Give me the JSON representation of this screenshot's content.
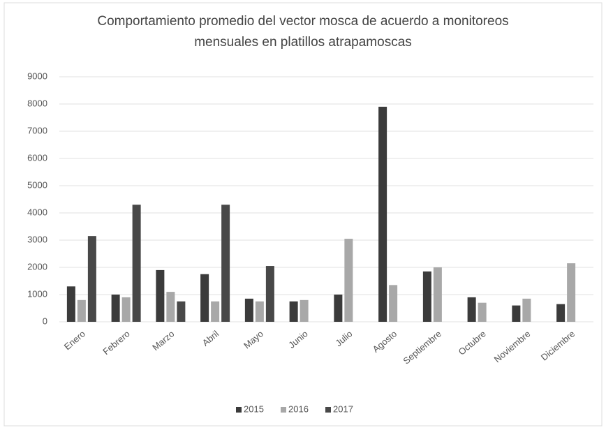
{
  "chart_data": {
    "type": "bar",
    "title": "Comportamiento promedio del vector mosca de acuerdo a monitoreos mensuales en platillos atrapamoscas",
    "categories": [
      "Enero",
      "Febrero",
      "Marzo",
      "Abril",
      "Mayo",
      "Junio",
      "Julio",
      "Agosto",
      "Septiembre",
      "Octubre",
      "Noviembre",
      "Diciembre"
    ],
    "series": [
      {
        "name": "2015",
        "color": "#3b3b3b",
        "values": [
          1300,
          1000,
          1900,
          1750,
          850,
          750,
          1000,
          7900,
          1850,
          900,
          600,
          650
        ]
      },
      {
        "name": "2016",
        "color": "#a8a8a8",
        "values": [
          800,
          900,
          1100,
          750,
          750,
          800,
          3050,
          1350,
          2000,
          700,
          850,
          2150
        ]
      },
      {
        "name": "2017",
        "color": "#484848",
        "values": [
          3150,
          4300,
          750,
          4300,
          2050,
          null,
          null,
          null,
          null,
          null,
          null,
          null
        ]
      }
    ],
    "ylim": [
      0,
      9000
    ],
    "yticks": [
      0,
      1000,
      2000,
      3000,
      4000,
      5000,
      6000,
      7000,
      8000,
      9000
    ],
    "grid": true,
    "legend": "bottom"
  }
}
